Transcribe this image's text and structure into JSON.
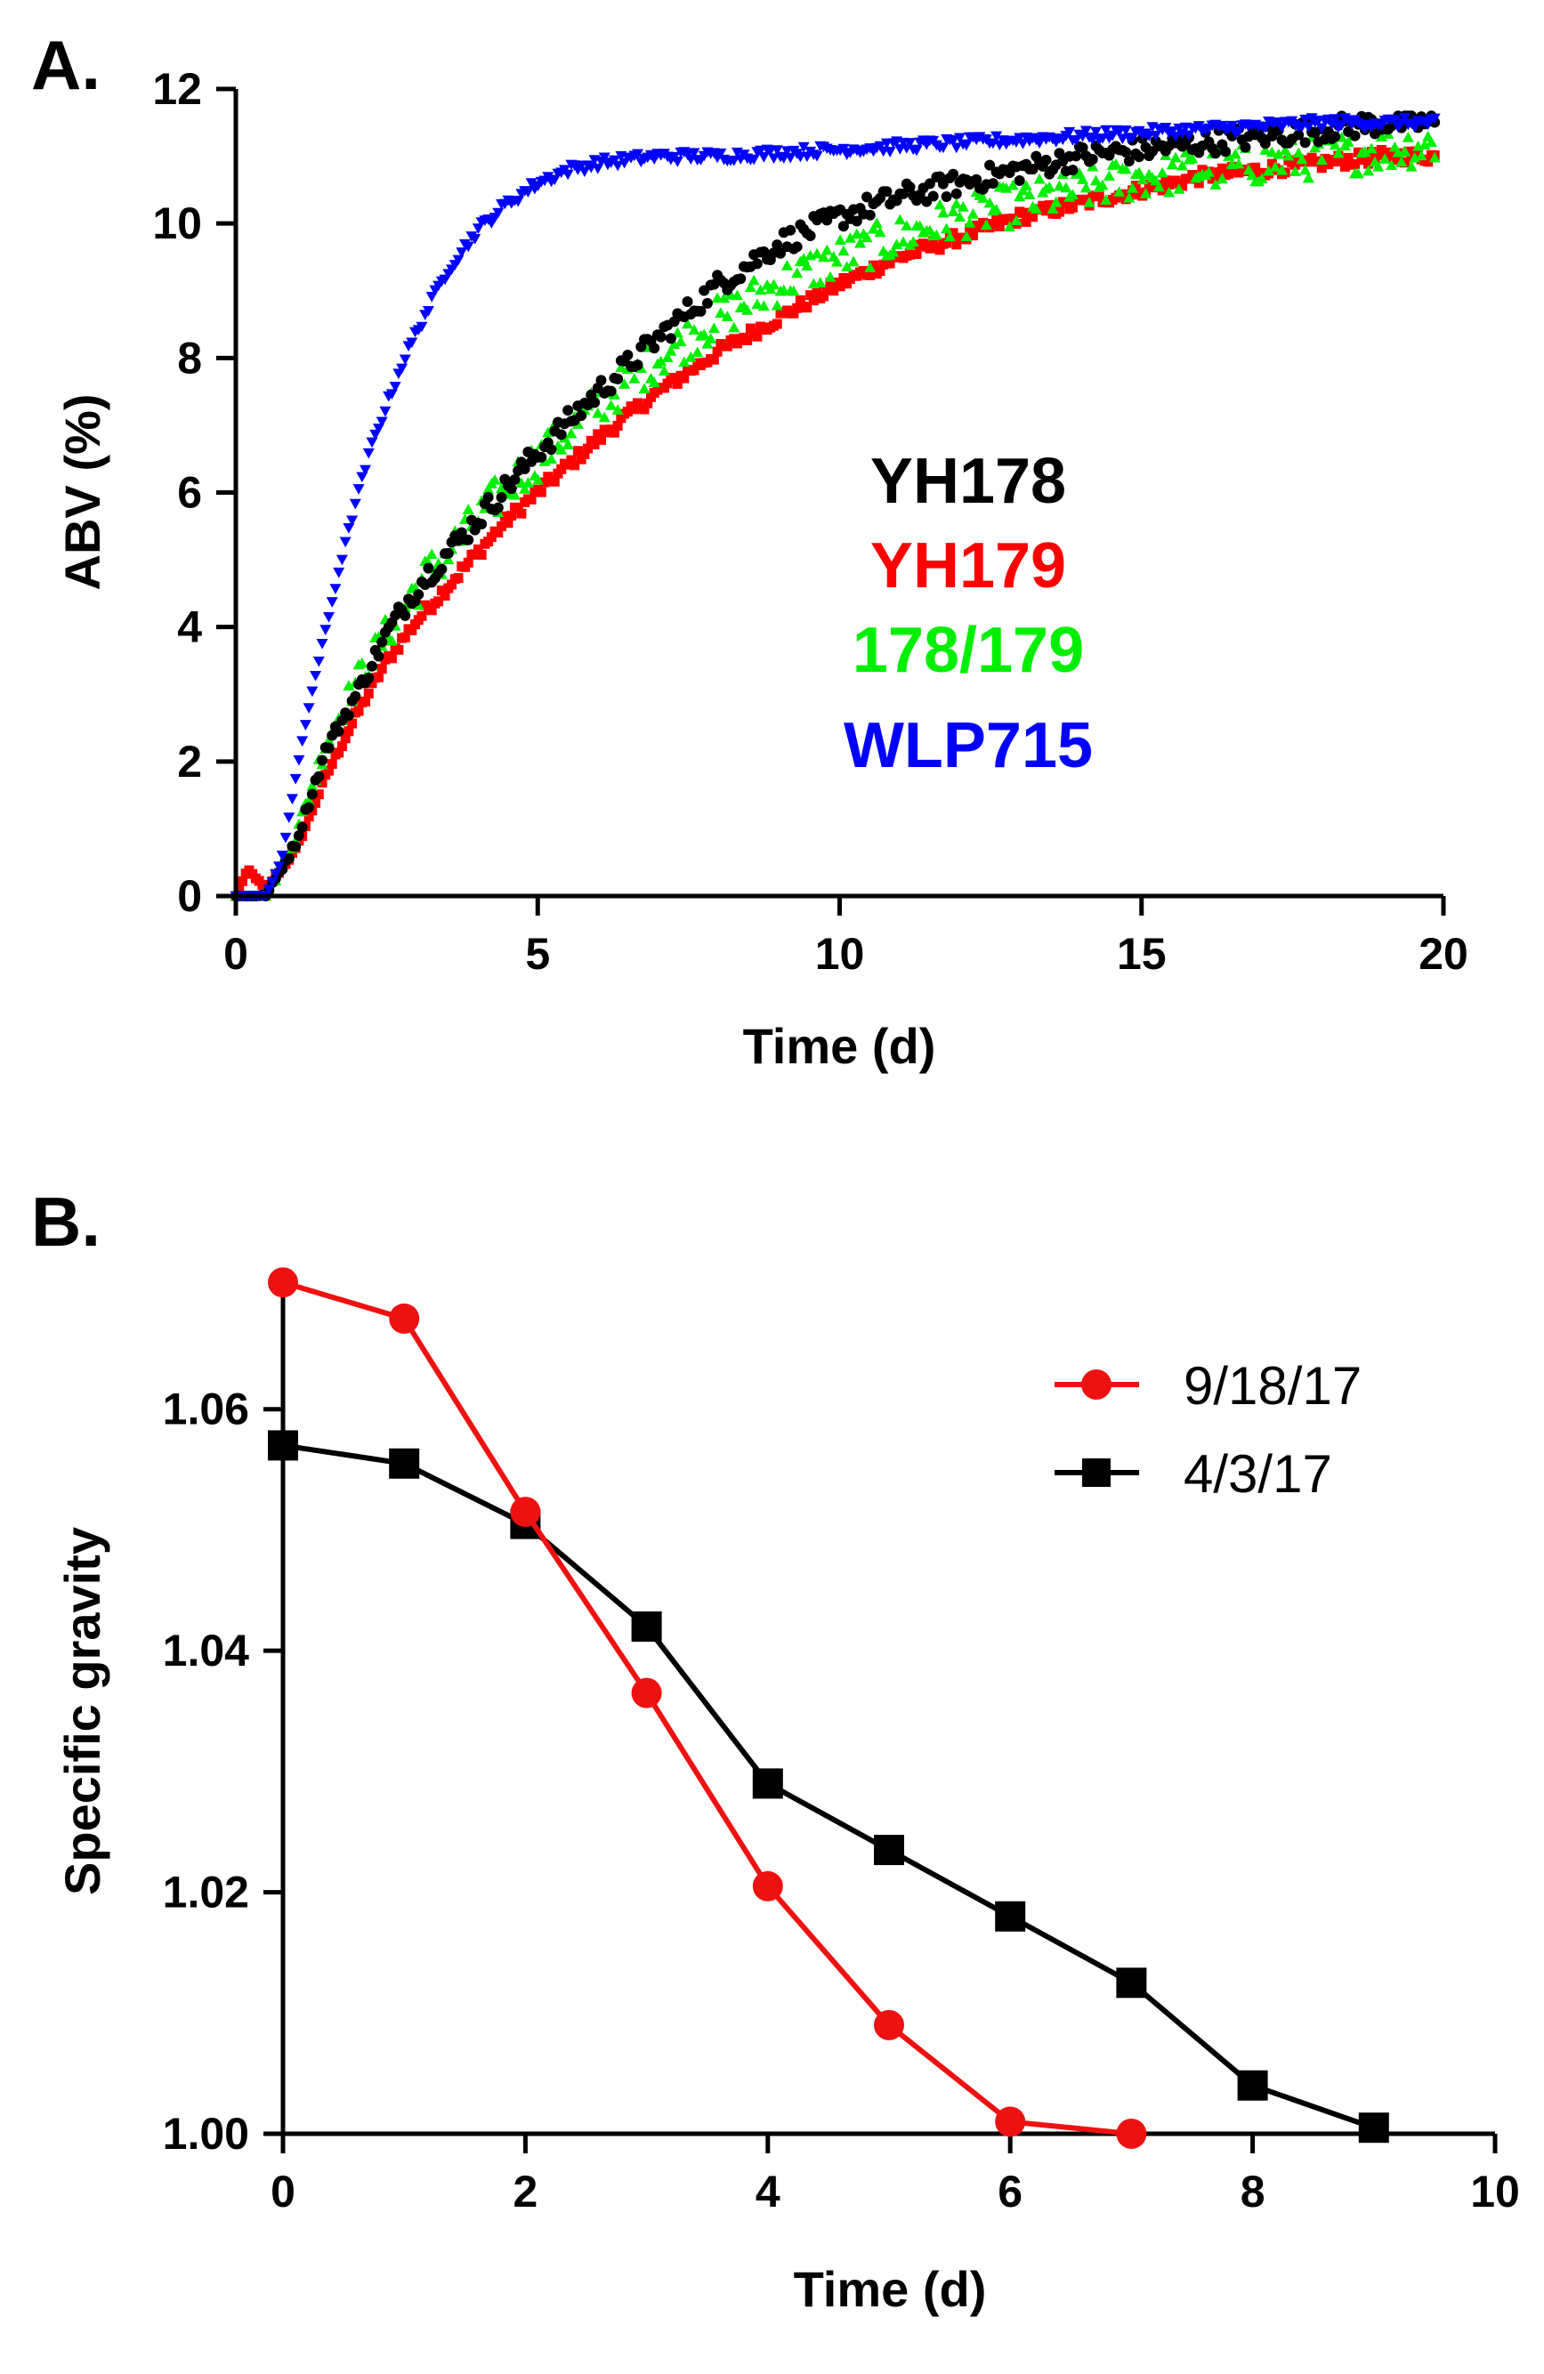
{
  "chart_data": [
    {
      "panel_label": "A.",
      "type": "scatter",
      "xlabel": "Time (d)",
      "ylabel": "ABV (%)",
      "xlim": [
        0,
        20
      ],
      "ylim": [
        0,
        12
      ],
      "x_ticks": [
        0,
        5,
        10,
        15,
        20
      ],
      "y_ticks": [
        0,
        2,
        4,
        6,
        8,
        10,
        12
      ],
      "grid": false,
      "legend_position": "center-right",
      "series": [
        {
          "name": "YH178",
          "color": "#000000",
          "marker": "circle",
          "x": [
            0,
            0.5,
            1,
            1.5,
            2,
            2.5,
            3,
            3.5,
            4,
            4.5,
            5,
            6,
            7,
            8,
            9,
            10,
            11,
            12,
            13,
            14,
            15,
            16,
            17,
            18,
            19,
            20
          ],
          "y": [
            0,
            0,
            0.8,
            2.2,
            3.0,
            3.9,
            4.6,
            5.1,
            5.6,
            6.1,
            6.6,
            7.5,
            8.3,
            9.1,
            9.7,
            10.1,
            10.4,
            10.6,
            10.8,
            11.0,
            11.1,
            11.2,
            11.3,
            11.4,
            11.5,
            11.5
          ]
        },
        {
          "name": "YH179",
          "color": "#ff0000",
          "marker": "square",
          "x": [
            0,
            0.2,
            0.5,
            1,
            1.5,
            2,
            2.5,
            3,
            3.5,
            4,
            4.5,
            5,
            6,
            7,
            8,
            9,
            10,
            11,
            12,
            13,
            14,
            15,
            16,
            17,
            18,
            19,
            20
          ],
          "y": [
            0,
            0.4,
            0.1,
            0.7,
            1.8,
            2.7,
            3.5,
            4.1,
            4.6,
            5.1,
            5.6,
            6.0,
            6.8,
            7.5,
            8.1,
            8.6,
            9.1,
            9.5,
            9.8,
            10.1,
            10.3,
            10.5,
            10.7,
            10.8,
            10.9,
            11.0,
            11.0
          ]
        },
        {
          "name": "178/179",
          "color": "#00ee00",
          "marker": "triangle-up",
          "x": [
            0,
            0.5,
            1,
            1.5,
            2,
            2.5,
            3,
            3.5,
            4,
            4.5,
            5,
            6,
            7,
            8,
            9,
            10,
            11,
            12,
            13,
            14,
            15,
            16,
            17,
            18,
            19,
            20
          ],
          "y": [
            0,
            0,
            0.9,
            2.3,
            3.2,
            3.9,
            4.6,
            5.1,
            5.6,
            6.1,
            6.5,
            7.3,
            8.0,
            8.6,
            9.1,
            9.5,
            9.8,
            10.1,
            10.3,
            10.5,
            10.7,
            10.8,
            10.9,
            11.0,
            11.1,
            11.2
          ]
        },
        {
          "name": "WLP715",
          "color": "#0000ff",
          "marker": "triangle-down",
          "x": [
            0,
            0.5,
            0.75,
            1,
            1.25,
            1.5,
            1.75,
            2,
            2.25,
            2.5,
            2.75,
            3,
            3.5,
            4,
            4.5,
            5,
            5.5,
            6,
            7,
            8,
            10,
            12,
            14,
            16,
            18,
            20
          ],
          "y": [
            0,
            0,
            0.5,
            1.8,
            3.0,
            4.0,
            5.0,
            5.9,
            6.7,
            7.3,
            7.9,
            8.4,
            9.3,
            9.9,
            10.3,
            10.6,
            10.8,
            10.9,
            11.0,
            11.0,
            11.1,
            11.2,
            11.3,
            11.4,
            11.5,
            11.5
          ]
        }
      ]
    },
    {
      "panel_label": "B.",
      "type": "line",
      "xlabel": "Time (d)",
      "ylabel": "Specific gravity",
      "xlim": [
        0,
        10
      ],
      "ylim": [
        1.0,
        1.07
      ],
      "x_ticks": [
        0,
        2,
        4,
        6,
        8,
        10
      ],
      "y_ticks": [
        "1.00",
        "1.02",
        "1.04",
        "1.06"
      ],
      "grid": false,
      "legend_position": "top-right",
      "series": [
        {
          "name": "9/18/17",
          "color": "#ee1111",
          "marker": "circle",
          "x": [
            0,
            1,
            2,
            3,
            4,
            5,
            6,
            7
          ],
          "y": [
            1.0705,
            1.0675,
            1.0515,
            1.0365,
            1.0205,
            1.009,
            1.001,
            1.0
          ]
        },
        {
          "name": "4/3/17",
          "color": "#000000",
          "marker": "square",
          "x": [
            0,
            1,
            2,
            3,
            4,
            5,
            6,
            7,
            8,
            9
          ],
          "y": [
            1.057,
            1.0555,
            1.0505,
            1.042,
            1.029,
            1.0235,
            1.018,
            1.0125,
            1.004,
            1.0005
          ]
        }
      ]
    }
  ]
}
